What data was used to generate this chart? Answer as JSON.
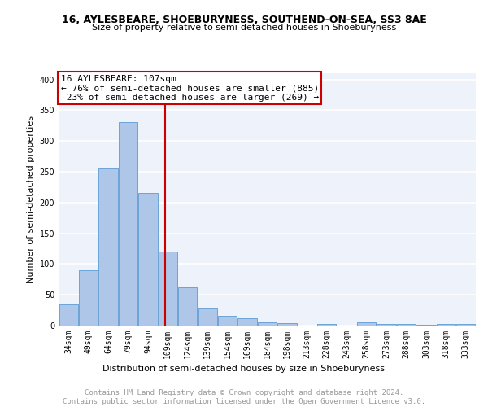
{
  "title1": "16, AYLESBEARE, SHOEBURYNESS, SOUTHEND-ON-SEA, SS3 8AE",
  "title2": "Size of property relative to semi-detached houses in Shoeburyness",
  "xlabel": "Distribution of semi-detached houses by size in Shoeburyness",
  "ylabel": "Number of semi-detached properties",
  "categories": [
    "34sqm",
    "49sqm",
    "64sqm",
    "79sqm",
    "94sqm",
    "109sqm",
    "124sqm",
    "139sqm",
    "154sqm",
    "169sqm",
    "184sqm",
    "198sqm",
    "213sqm",
    "228sqm",
    "243sqm",
    "258sqm",
    "273sqm",
    "288sqm",
    "303sqm",
    "318sqm",
    "333sqm"
  ],
  "values": [
    35,
    90,
    255,
    330,
    215,
    121,
    62,
    29,
    16,
    12,
    5,
    4,
    0,
    3,
    0,
    5,
    3,
    2,
    1,
    3,
    3
  ],
  "bar_color": "#aec6e8",
  "bar_edge_color": "#5b9bd5",
  "vline_color": "#cc0000",
  "annotation_line1": "16 AYLESBEARE: 107sqm",
  "annotation_line2": "← 76% of semi-detached houses are smaller (885)",
  "annotation_line3": " 23% of semi-detached houses are larger (269) →",
  "annotation_box_color": "#ffffff",
  "annotation_box_edge": "#cc0000",
  "footer": "Contains HM Land Registry data © Crown copyright and database right 2024.\nContains public sector information licensed under the Open Government Licence v3.0.",
  "ylim": [
    0,
    410
  ],
  "yticks": [
    0,
    50,
    100,
    150,
    200,
    250,
    300,
    350,
    400
  ],
  "background_color": "#eef2fa",
  "grid_color": "#ffffff",
  "title1_fontsize": 9,
  "title2_fontsize": 8,
  "xlabel_fontsize": 8,
  "ylabel_fontsize": 8,
  "tick_fontsize": 7,
  "footer_fontsize": 6.5,
  "ann_fontsize": 8
}
